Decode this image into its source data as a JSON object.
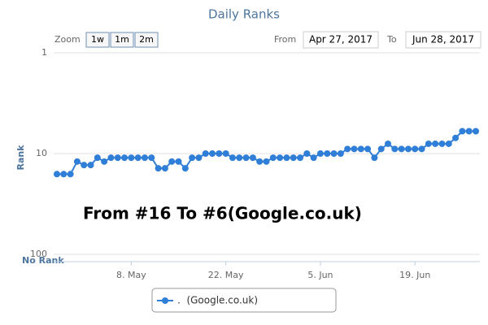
{
  "chart_data": {
    "type": "line",
    "title": "Daily Ranks",
    "range_selector": {
      "zoom_label": "Zoom",
      "buttons": [
        "1w",
        "1m",
        "2m"
      ],
      "from_label": "From",
      "from": "Apr 27, 2017",
      "to_label": "To",
      "to": "Jun 28, 2017"
    },
    "y_label": "Rank",
    "no_rank_label": "No Rank",
    "annotation": "From #16 To #6(Google.co.uk)",
    "log_y": true,
    "y_reversed": true,
    "ylim": [
      1,
      100
    ],
    "yticks": [
      1,
      10,
      100
    ],
    "grid": true,
    "xlim": [
      "2017-04-27",
      "2017-06-28"
    ],
    "xticks": [
      {
        "value": "2017-05-08",
        "label": "8. May"
      },
      {
        "value": "2017-05-22",
        "label": "22. May"
      },
      {
        "value": "2017-06-05",
        "label": "5. Jun"
      },
      {
        "value": "2017-06-19",
        "label": "19. Jun"
      }
    ],
    "x": [
      "2017-04-27",
      "2017-04-28",
      "2017-04-29",
      "2017-04-30",
      "2017-05-01",
      "2017-05-02",
      "2017-05-03",
      "2017-05-04",
      "2017-05-05",
      "2017-05-06",
      "2017-05-07",
      "2017-05-08",
      "2017-05-09",
      "2017-05-10",
      "2017-05-11",
      "2017-05-12",
      "2017-05-13",
      "2017-05-14",
      "2017-05-15",
      "2017-05-16",
      "2017-05-17",
      "2017-05-18",
      "2017-05-19",
      "2017-05-20",
      "2017-05-21",
      "2017-05-22",
      "2017-05-23",
      "2017-05-24",
      "2017-05-25",
      "2017-05-26",
      "2017-05-27",
      "2017-05-28",
      "2017-05-29",
      "2017-05-30",
      "2017-05-31",
      "2017-06-01",
      "2017-06-02",
      "2017-06-03",
      "2017-06-04",
      "2017-06-05",
      "2017-06-06",
      "2017-06-07",
      "2017-06-08",
      "2017-06-09",
      "2017-06-10",
      "2017-06-11",
      "2017-06-12",
      "2017-06-13",
      "2017-06-14",
      "2017-06-15",
      "2017-06-16",
      "2017-06-17",
      "2017-06-18",
      "2017-06-19",
      "2017-06-20",
      "2017-06-21",
      "2017-06-22",
      "2017-06-23",
      "2017-06-24",
      "2017-06-25",
      "2017-06-26",
      "2017-06-27",
      "2017-06-28"
    ],
    "series": [
      {
        "name": ".  (Google.co.uk)",
        "color": "#2f7ed8",
        "values": [
          16,
          16,
          16,
          12,
          13,
          13,
          11,
          12,
          11,
          11,
          11,
          11,
          11,
          11,
          11,
          14,
          14,
          12,
          12,
          14,
          11,
          11,
          10,
          10,
          10,
          10,
          11,
          11,
          11,
          11,
          12,
          12,
          11,
          11,
          11,
          11,
          11,
          10,
          11,
          10,
          10,
          10,
          10,
          9,
          9,
          9,
          9,
          11,
          9,
          8,
          9,
          9,
          9,
          9,
          9,
          8,
          8,
          8,
          8,
          7,
          6,
          6,
          6
        ]
      }
    ]
  }
}
